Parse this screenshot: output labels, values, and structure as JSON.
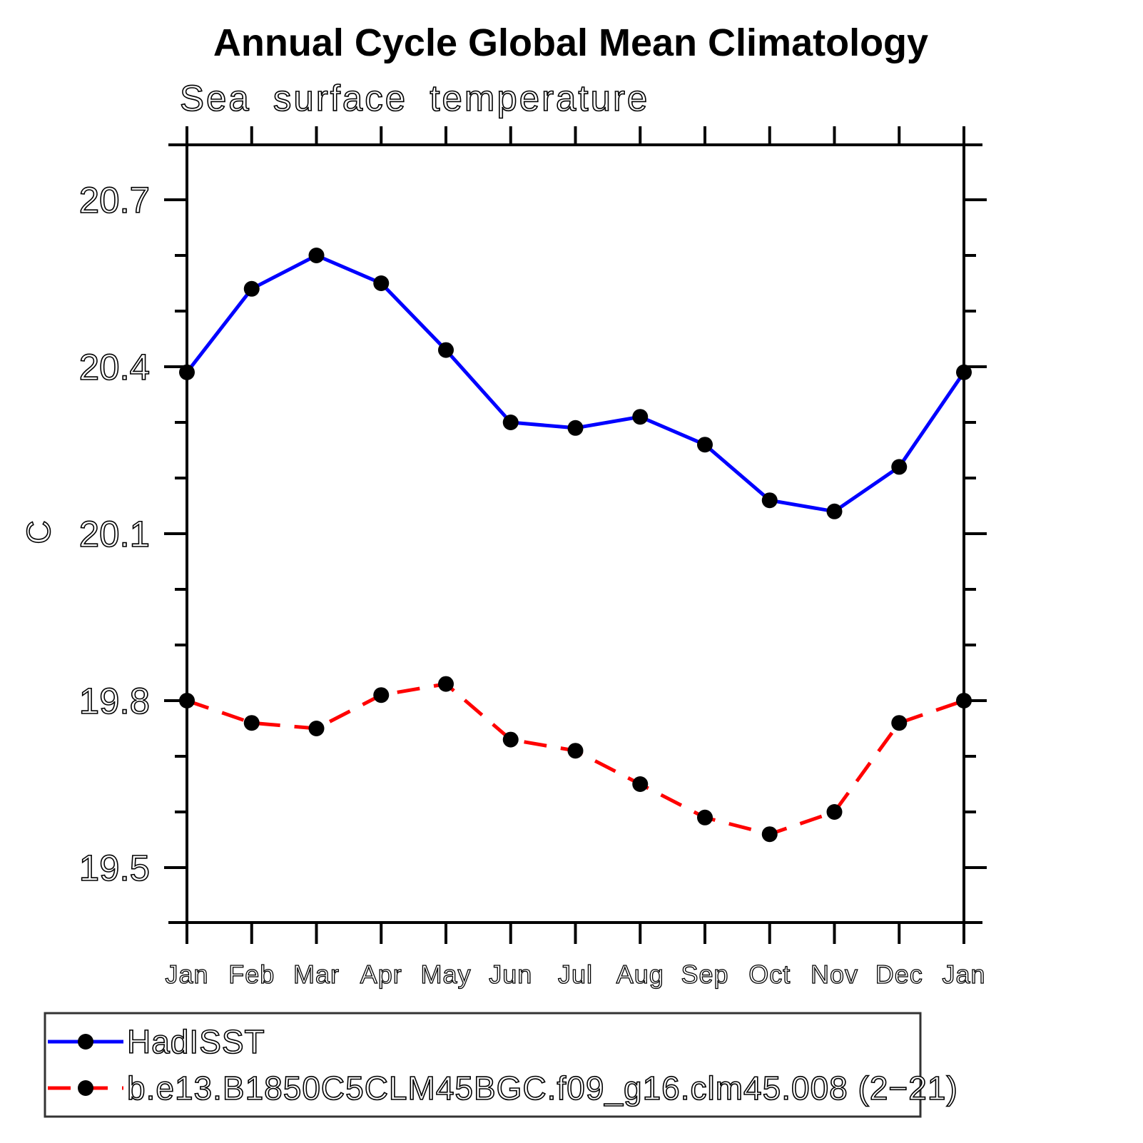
{
  "title": "Annual Cycle Global Mean Climatology",
  "subtitle": "Sea surface temperature",
  "colors": {
    "background": "#ffffff",
    "axis": "#000000",
    "marker": "#000000",
    "obs_line": "#0000ff",
    "model_line": "#ff0000",
    "legend_border": "#333333"
  },
  "chart_data": {
    "type": "line",
    "title": "Annual Cycle Global Mean Climatology",
    "subtitle": "Sea surface temperature",
    "xlabel": "",
    "ylabel": "C",
    "categories": [
      "Jan",
      "Feb",
      "Mar",
      "Apr",
      "May",
      "Jun",
      "Jul",
      "Aug",
      "Sep",
      "Oct",
      "Nov",
      "Dec",
      "Jan"
    ],
    "yticks": [
      19.5,
      19.8,
      20.1,
      20.4,
      20.7
    ],
    "ytick_labels": [
      "19.5",
      "19.8",
      "20.1",
      "20.4",
      "20.7"
    ],
    "yticks_minor": [
      19.6,
      19.7,
      19.9,
      20.0,
      20.2,
      20.3,
      20.5,
      20.6
    ],
    "ylim": [
      19.4,
      20.8
    ],
    "grid": false,
    "legend_position": "bottom-left-outside",
    "series": [
      {
        "name": "HadISST",
        "color": "#0000ff",
        "style": "solid",
        "marker": "filled-circle",
        "marker_color": "#000000",
        "values": [
          20.39,
          20.54,
          20.6,
          20.55,
          20.43,
          20.3,
          20.29,
          20.31,
          20.26,
          20.16,
          20.14,
          20.22,
          20.39
        ]
      },
      {
        "name": "b.e13.B1850C5CLM45BGC.f09_g16.clm45.008 (2−21)",
        "color": "#ff0000",
        "style": "dashed",
        "marker": "filled-circle",
        "marker_color": "#000000",
        "values": [
          19.8,
          19.76,
          19.75,
          19.81,
          19.83,
          19.73,
          19.71,
          19.65,
          19.59,
          19.56,
          19.6,
          19.76,
          19.8
        ]
      }
    ]
  }
}
